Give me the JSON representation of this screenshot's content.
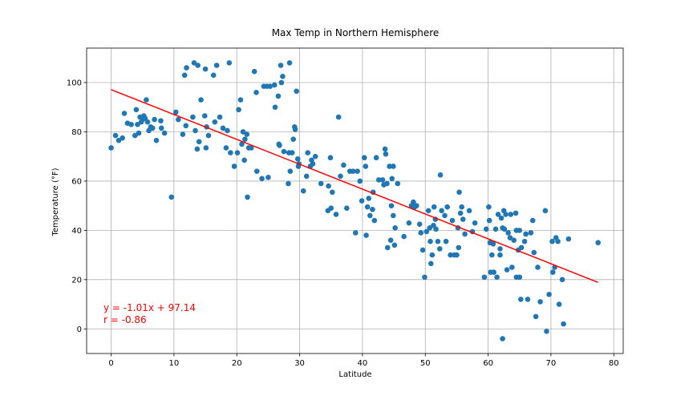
{
  "chart_data": {
    "type": "scatter",
    "title": "Max Temp in Northern Hemisphere",
    "xlabel": "Latitude",
    "ylabel": "Temperature (°F)",
    "xlim": [
      -3.9,
      81.5
    ],
    "ylim": [
      -10,
      114
    ],
    "x_ticks": [
      0,
      10,
      20,
      30,
      40,
      50,
      60,
      70,
      80
    ],
    "y_ticks": [
      0,
      20,
      40,
      60,
      80,
      100
    ],
    "grid": true,
    "marker_color": "#1f77b4",
    "regression": {
      "color": "#ff0000",
      "slope": -1.01,
      "intercept": 97.14,
      "x_range": [
        0,
        77.5
      ],
      "equation_text": "y = -1.01x + 97.14",
      "r_text": "r = -0.86"
    },
    "series": [
      {
        "points": [
          [
            0.0,
            73.5
          ],
          [
            0.7,
            78.5
          ],
          [
            1.2,
            76.5
          ],
          [
            1.8,
            77.5
          ],
          [
            2.1,
            87.5
          ],
          [
            2.6,
            83.5
          ],
          [
            3.2,
            83
          ],
          [
            3.8,
            78.5
          ],
          [
            4.0,
            89
          ],
          [
            4.2,
            83
          ],
          [
            4.4,
            79.5
          ],
          [
            4.6,
            86
          ],
          [
            4.8,
            84
          ],
          [
            5.0,
            85
          ],
          [
            5.2,
            86.5
          ],
          [
            5.4,
            85.5
          ],
          [
            5.6,
            93
          ],
          [
            5.8,
            84
          ],
          [
            6.0,
            80.5
          ],
          [
            6.3,
            82
          ],
          [
            6.6,
            81.5
          ],
          [
            6.9,
            85
          ],
          [
            7.2,
            76.5
          ],
          [
            7.9,
            84.5
          ],
          [
            8.0,
            81.5
          ],
          [
            8.5,
            79.5
          ],
          [
            9.6,
            53.5
          ],
          [
            10.3,
            88
          ],
          [
            10.7,
            85
          ],
          [
            11.4,
            79
          ],
          [
            11.7,
            103
          ],
          [
            11.9,
            82.5
          ],
          [
            12.0,
            106
          ],
          [
            13.0,
            86
          ],
          [
            13.2,
            108
          ],
          [
            13.4,
            80.5
          ],
          [
            13.8,
            107
          ],
          [
            13.7,
            73
          ],
          [
            14.0,
            76
          ],
          [
            14.3,
            93
          ],
          [
            14.9,
            86.5
          ],
          [
            15.1,
            73.5
          ],
          [
            15.0,
            105.5
          ],
          [
            15.2,
            82
          ],
          [
            15.5,
            78.5
          ],
          [
            16.3,
            103
          ],
          [
            16.5,
            84
          ],
          [
            16.8,
            107
          ],
          [
            17.3,
            86
          ],
          [
            17.8,
            81.5
          ],
          [
            18.3,
            73.5
          ],
          [
            18.5,
            80.5
          ],
          [
            18.8,
            108
          ],
          [
            19.0,
            71.5
          ],
          [
            19.6,
            66
          ],
          [
            20.1,
            71.5
          ],
          [
            20.3,
            89
          ],
          [
            20.6,
            93
          ],
          [
            20.8,
            75
          ],
          [
            21.0,
            80
          ],
          [
            21.2,
            68.5
          ],
          [
            21.3,
            77
          ],
          [
            21.6,
            79
          ],
          [
            21.9,
            73.5
          ],
          [
            21.7,
            53.5
          ],
          [
            22.3,
            73.5
          ],
          [
            22.8,
            104.5
          ],
          [
            23.1,
            96
          ],
          [
            23.2,
            64
          ],
          [
            24.0,
            61
          ],
          [
            24.3,
            98.5
          ],
          [
            24.8,
            98.5
          ],
          [
            25.0,
            61.5
          ],
          [
            25.3,
            98.5
          ],
          [
            26.0,
            99
          ],
          [
            26.1,
            90
          ],
          [
            26.6,
            94.5
          ],
          [
            26.7,
            75
          ],
          [
            26.8,
            74.5
          ],
          [
            27.1,
            100
          ],
          [
            27.0,
            107
          ],
          [
            27.3,
            102.5
          ],
          [
            27.5,
            72
          ],
          [
            28.2,
            59
          ],
          [
            28.3,
            71.5
          ],
          [
            28.4,
            108
          ],
          [
            28.5,
            64
          ],
          [
            28.8,
            71.5
          ],
          [
            29.0,
            77
          ],
          [
            29.2,
            82
          ],
          [
            29.3,
            81
          ],
          [
            29.5,
            96.5
          ],
          [
            29.7,
            69
          ],
          [
            29.8,
            66
          ],
          [
            29.9,
            67
          ],
          [
            30.6,
            56
          ],
          [
            31.1,
            62
          ],
          [
            31.3,
            71.5
          ],
          [
            31.7,
            66
          ],
          [
            31.9,
            68.5
          ],
          [
            32.1,
            67
          ],
          [
            32.5,
            70
          ],
          [
            33.4,
            59
          ],
          [
            34.5,
            48
          ],
          [
            34.6,
            58
          ],
          [
            34.9,
            69.5
          ],
          [
            35.0,
            49
          ],
          [
            35.2,
            55.5
          ],
          [
            35.8,
            46.5
          ],
          [
            36.2,
            86
          ],
          [
            36.5,
            62
          ],
          [
            37.0,
            66.5
          ],
          [
            37.5,
            49
          ],
          [
            38.0,
            64
          ],
          [
            38.5,
            64
          ],
          [
            38.9,
            39
          ],
          [
            39.2,
            64
          ],
          [
            39.6,
            60
          ],
          [
            39.9,
            52
          ],
          [
            40.3,
            69.5
          ],
          [
            40.5,
            66
          ],
          [
            40.6,
            38
          ],
          [
            40.8,
            49.5
          ],
          [
            41.0,
            53
          ],
          [
            41.2,
            46
          ],
          [
            41.6,
            48.5
          ],
          [
            41.7,
            55.5
          ],
          [
            41.9,
            44
          ],
          [
            42.2,
            69.5
          ],
          [
            42.6,
            60.5
          ],
          [
            43.2,
            60.5
          ],
          [
            43.4,
            58.5
          ],
          [
            43.6,
            73
          ],
          [
            43.7,
            71
          ],
          [
            43.9,
            59
          ],
          [
            44.0,
            33
          ],
          [
            44.3,
            66
          ],
          [
            44.5,
            36
          ],
          [
            44.7,
            61
          ],
          [
            44.6,
            50
          ],
          [
            44.9,
            66
          ],
          [
            44.9,
            46
          ],
          [
            45.1,
            34
          ],
          [
            45.2,
            41
          ],
          [
            45.6,
            59
          ],
          [
            46.6,
            37.5
          ],
          [
            47.4,
            43
          ],
          [
            47.8,
            50
          ],
          [
            48.1,
            51.5
          ],
          [
            48.3,
            49.5
          ],
          [
            48.6,
            50
          ],
          [
            49.1,
            42.5
          ],
          [
            49.3,
            39
          ],
          [
            49.6,
            32
          ],
          [
            49.9,
            21
          ],
          [
            50.2,
            39.5
          ],
          [
            50.5,
            48
          ],
          [
            50.7,
            41
          ],
          [
            50.8,
            35.5
          ],
          [
            50.9,
            26.5
          ],
          [
            51.1,
            30
          ],
          [
            51.3,
            42
          ],
          [
            51.4,
            49.5
          ],
          [
            51.6,
            44.5
          ],
          [
            51.7,
            40.5
          ],
          [
            52.0,
            35.5
          ],
          [
            52.3,
            32.5
          ],
          [
            52.4,
            62.5
          ],
          [
            52.6,
            48
          ],
          [
            53.1,
            46
          ],
          [
            53.3,
            35.5
          ],
          [
            53.5,
            49.5
          ],
          [
            54.0,
            30
          ],
          [
            54.3,
            44
          ],
          [
            54.6,
            30
          ],
          [
            55.0,
            30
          ],
          [
            55.2,
            41
          ],
          [
            55.3,
            33
          ],
          [
            55.4,
            55.5
          ],
          [
            55.6,
            47
          ],
          [
            55.8,
            49.5
          ],
          [
            56.0,
            44.5
          ],
          [
            56.3,
            38.5
          ],
          [
            57.0,
            48
          ],
          [
            57.5,
            39.5
          ],
          [
            57.9,
            43
          ],
          [
            59.4,
            21
          ],
          [
            59.7,
            40.5
          ],
          [
            60.1,
            49.5
          ],
          [
            60.2,
            44
          ],
          [
            60.3,
            35
          ],
          [
            60.4,
            23
          ],
          [
            60.6,
            30
          ],
          [
            60.8,
            34.5
          ],
          [
            60.9,
            23
          ],
          [
            61.2,
            40.5
          ],
          [
            61.4,
            21
          ],
          [
            61.6,
            46.5
          ],
          [
            61.9,
            32.5
          ],
          [
            61.9,
            30
          ],
          [
            62.1,
            45
          ],
          [
            62.3,
            41
          ],
          [
            62.5,
            48
          ],
          [
            62.6,
            40.5
          ],
          [
            62.3,
            -4
          ],
          [
            62.8,
            46.5
          ],
          [
            63.0,
            24
          ],
          [
            63.2,
            39
          ],
          [
            63.5,
            37
          ],
          [
            63.6,
            46.5
          ],
          [
            63.8,
            25
          ],
          [
            64.1,
            36
          ],
          [
            64.4,
            47
          ],
          [
            64.5,
            21
          ],
          [
            64.5,
            40
          ],
          [
            64.8,
            32
          ],
          [
            65.0,
            21
          ],
          [
            65.0,
            40
          ],
          [
            65.3,
            33
          ],
          [
            65.2,
            12
          ],
          [
            65.8,
            35.5
          ],
          [
            66.0,
            38.5
          ],
          [
            66.3,
            12
          ],
          [
            66.8,
            39
          ],
          [
            67.1,
            44
          ],
          [
            67.3,
            31
          ],
          [
            67.6,
            5
          ],
          [
            67.9,
            25
          ],
          [
            68.3,
            11
          ],
          [
            69.1,
            48
          ],
          [
            69.3,
            -1
          ],
          [
            69.7,
            14
          ],
          [
            70.2,
            35.5
          ],
          [
            70.3,
            23
          ],
          [
            70.6,
            25
          ],
          [
            70.8,
            37
          ],
          [
            71.1,
            35.5
          ],
          [
            71.3,
            10
          ],
          [
            71.8,
            20
          ],
          [
            72.0,
            2
          ],
          [
            72.8,
            36.5
          ],
          [
            77.5,
            35
          ]
        ]
      }
    ]
  }
}
